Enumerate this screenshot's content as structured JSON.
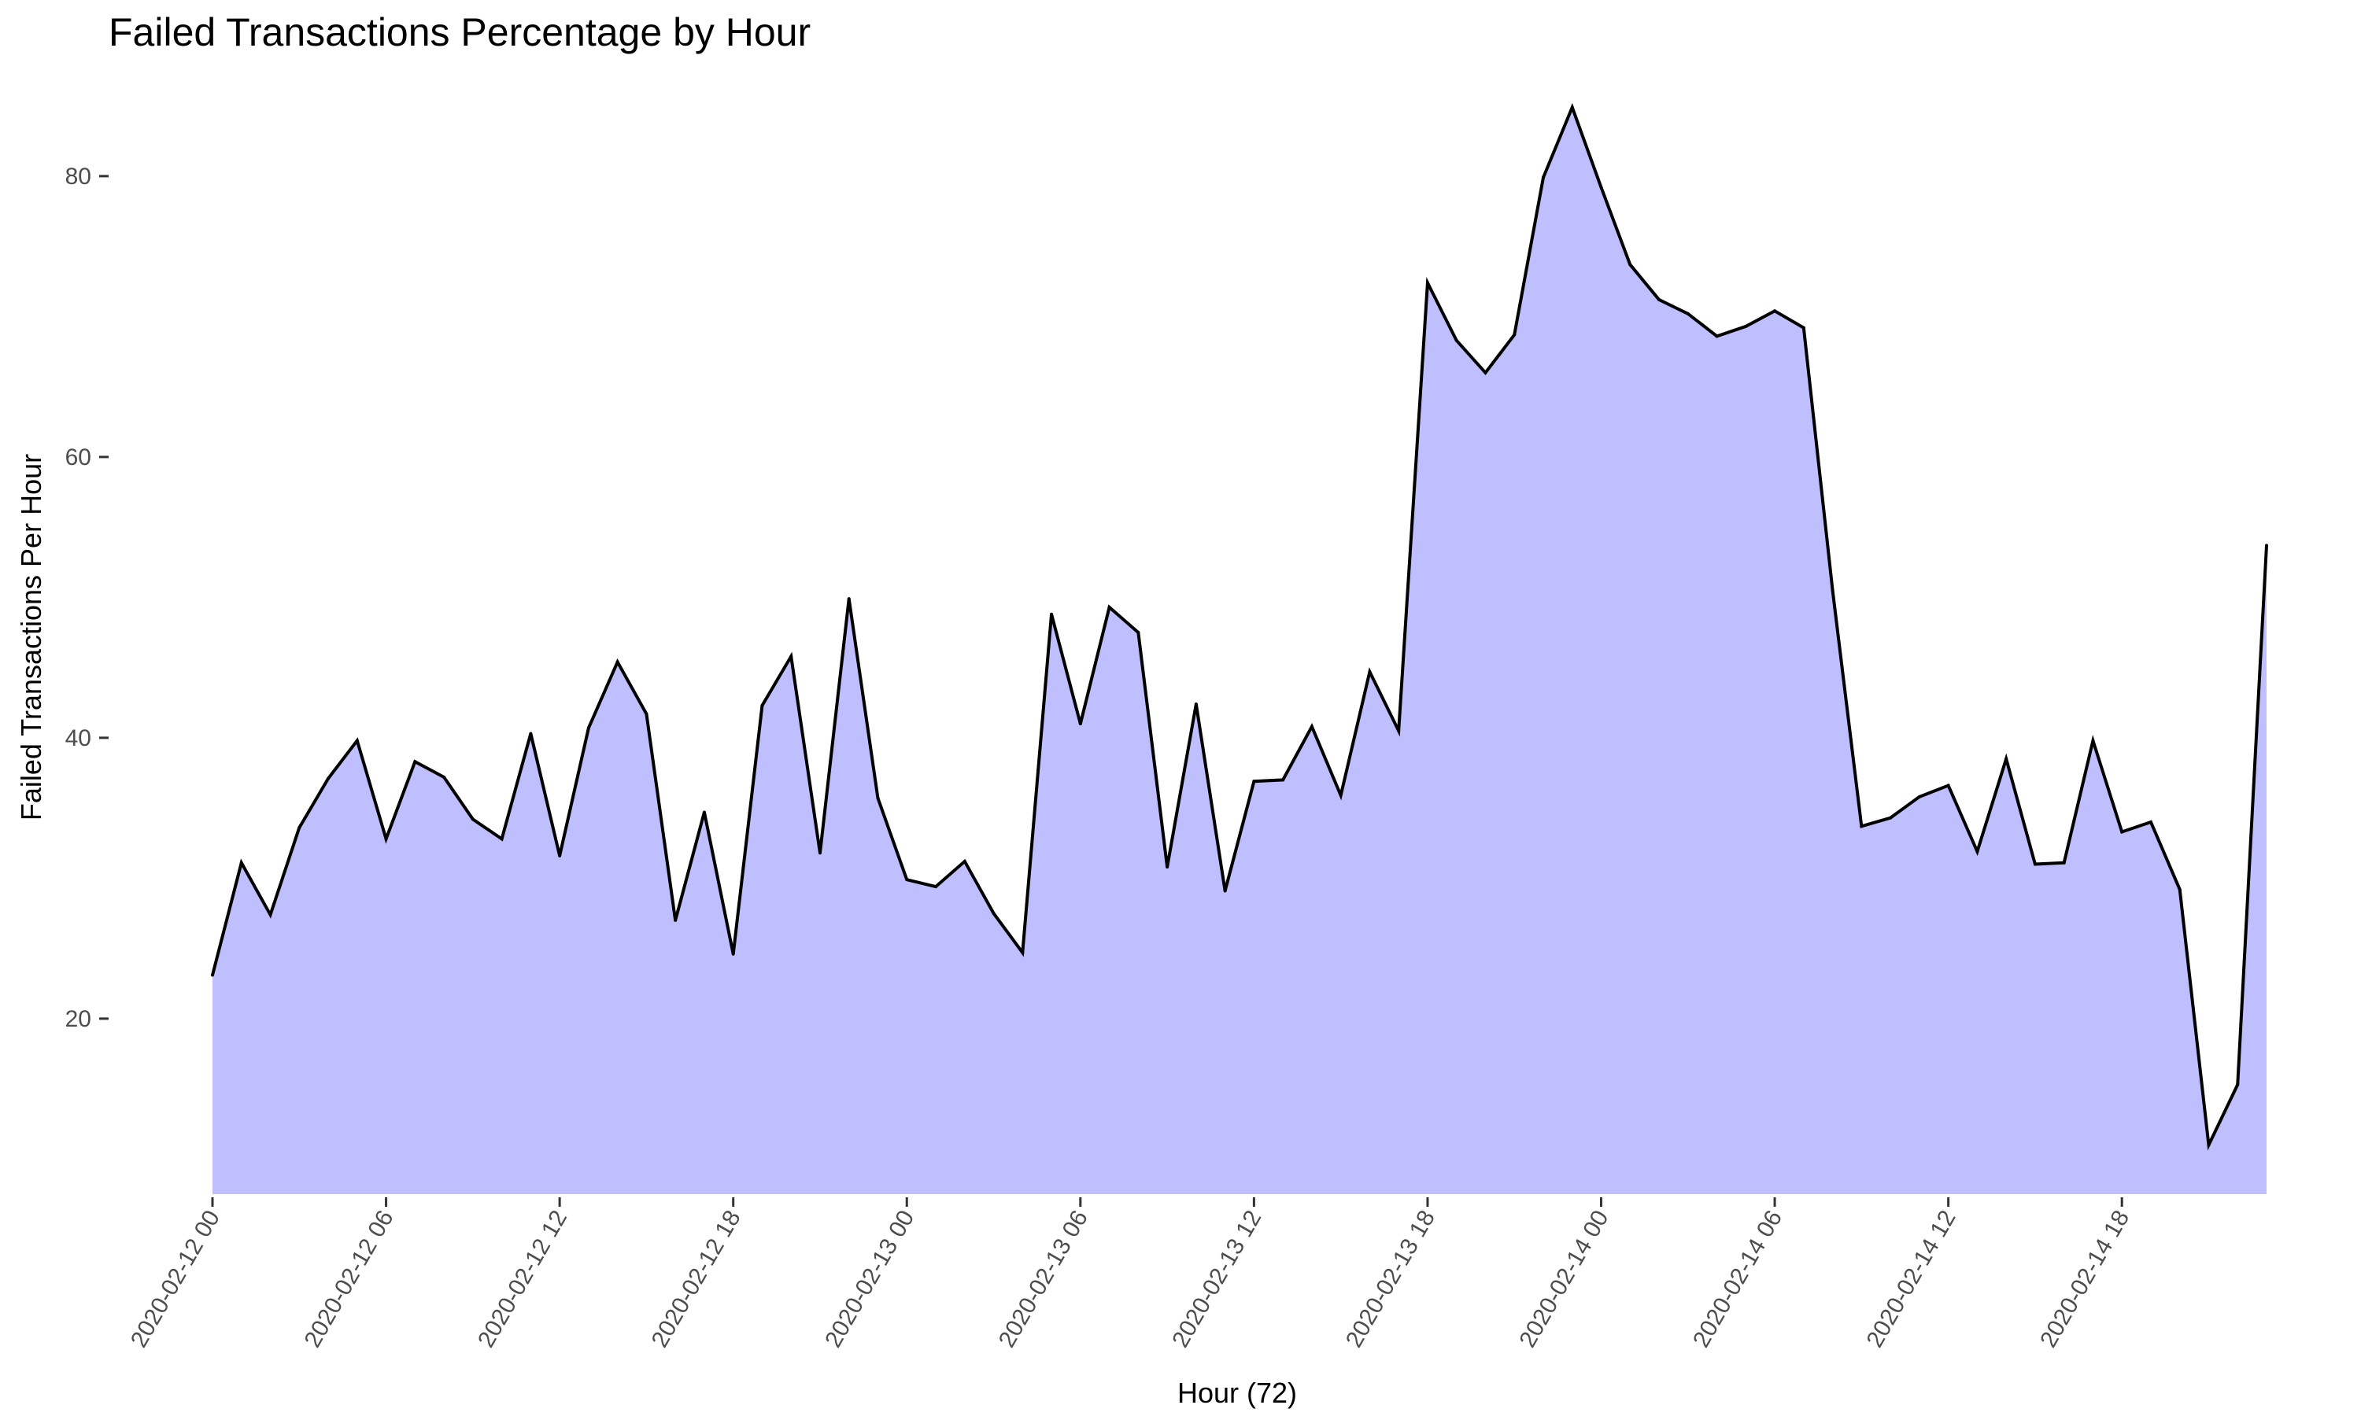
{
  "chart_data": {
    "type": "area",
    "title": "Failed Transactions Percentage by Hour",
    "xlabel": "Hour (72)",
    "ylabel": "Failed Transactions Per Hour",
    "x_start": "2020-02-12 00",
    "x_ticks": [
      "2020-02-12 00",
      "2020-02-12 06",
      "2020-02-12 12",
      "2020-02-12 18",
      "2020-02-13 00",
      "2020-02-13 06",
      "2020-02-13 12",
      "2020-02-13 18",
      "2020-02-14 00",
      "2020-02-14 06",
      "2020-02-14 12",
      "2020-02-14 18"
    ],
    "y_ticks": [
      20,
      40,
      60,
      80
    ],
    "ylim": [
      7.5,
      87.5
    ],
    "grid": false,
    "legend": "none",
    "series": [
      {
        "values": [
          23.1,
          31.1,
          27.4,
          33.6,
          37.1,
          39.8,
          32.8,
          38.3,
          37.2,
          34.2,
          32.8,
          40.3,
          31.6,
          40.7,
          45.4,
          41.7,
          27.0,
          34.7,
          24.6,
          42.3,
          45.8,
          31.8,
          49.9,
          35.7,
          29.9,
          29.4,
          31.2,
          27.5,
          24.7,
          48.8,
          41.0,
          49.3,
          47.5,
          30.8,
          42.4,
          29.1,
          36.9,
          37.0,
          40.8,
          35.9,
          44.7,
          40.5,
          72.4,
          68.3,
          66.0,
          68.7,
          79.9,
          84.9,
          79.2,
          73.7,
          71.2,
          70.2,
          68.6,
          69.3,
          70.4,
          69.2,
          50.5,
          33.7,
          34.3,
          35.8,
          36.6,
          31.9,
          38.5,
          31.0,
          31.1,
          39.8,
          33.3,
          34.0,
          29.2,
          11.0,
          15.3,
          53.7
        ]
      }
    ],
    "colors": {
      "fill": "#bfbfff",
      "line": "#000000",
      "tick_text": "#4d4d4d",
      "tick_mark": "#333333"
    }
  }
}
